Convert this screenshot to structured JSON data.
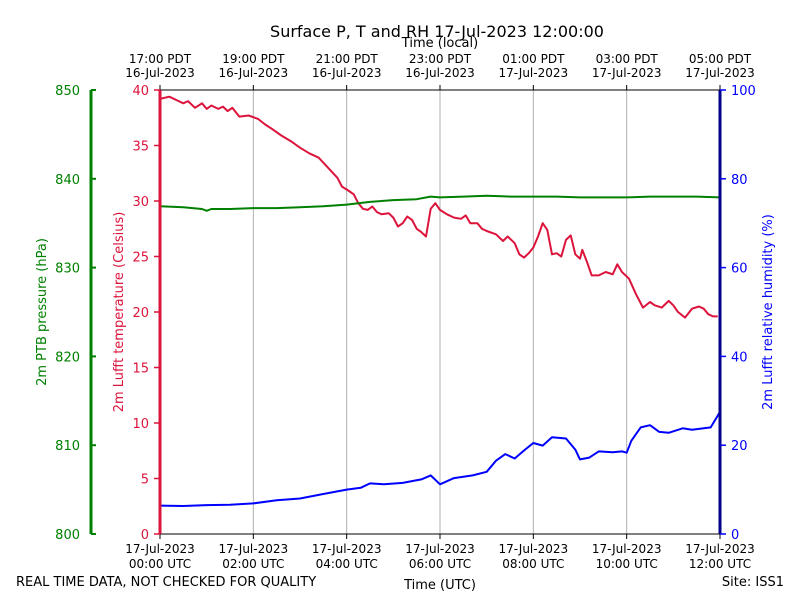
{
  "chart_data": {
    "type": "line",
    "title": "Surface P, T and RH 17-Jul-2023 12:00:00",
    "x_top_label": "Time (local)",
    "x_label": "Time (UTC)",
    "x_range_hours_utc": [
      0,
      12
    ],
    "x_bottom_ticks": [
      {
        "h": 0,
        "line1": "17-Jul-2023",
        "line2": "00:00 UTC"
      },
      {
        "h": 2,
        "line1": "17-Jul-2023",
        "line2": "02:00 UTC"
      },
      {
        "h": 4,
        "line1": "17-Jul-2023",
        "line2": "04:00 UTC"
      },
      {
        "h": 6,
        "line1": "17-Jul-2023",
        "line2": "06:00 UTC"
      },
      {
        "h": 8,
        "line1": "17-Jul-2023",
        "line2": "08:00 UTC"
      },
      {
        "h": 10,
        "line1": "17-Jul-2023",
        "line2": "10:00 UTC"
      },
      {
        "h": 12,
        "line1": "17-Jul-2023",
        "line2": "12:00 UTC"
      }
    ],
    "x_top_ticks": [
      {
        "h": 0,
        "line1": "17:00 PDT",
        "line2": "16-Jul-2023"
      },
      {
        "h": 2,
        "line1": "19:00 PDT",
        "line2": "16-Jul-2023"
      },
      {
        "h": 4,
        "line1": "21:00 PDT",
        "line2": "16-Jul-2023"
      },
      {
        "h": 6,
        "line1": "23:00 PDT",
        "line2": "16-Jul-2023"
      },
      {
        "h": 8,
        "line1": "01:00 PDT",
        "line2": "17-Jul-2023"
      },
      {
        "h": 10,
        "line1": "03:00 PDT",
        "line2": "17-Jul-2023"
      },
      {
        "h": 12,
        "line1": "05:00 PDT",
        "line2": "17-Jul-2023"
      }
    ],
    "vertical_grid_hours": [
      2,
      4,
      6,
      8,
      10
    ],
    "axes": {
      "pressure": {
        "label": "2m PTB pressure (hPa)",
        "range": [
          800,
          850
        ],
        "ticks": [
          800,
          810,
          820,
          830,
          840,
          850
        ],
        "color": "#008000"
      },
      "temperature": {
        "label": "2m Lufft temperature (Celsius)",
        "range": [
          0,
          40
        ],
        "ticks": [
          0,
          5,
          10,
          15,
          20,
          25,
          30,
          35,
          40
        ],
        "color": "#dc143c"
      },
      "humidity": {
        "label": "2m Lufft relative humidity (%)",
        "range": [
          0,
          100
        ],
        "ticks": [
          0,
          20,
          40,
          60,
          80,
          100
        ],
        "color": "#0000ff"
      }
    },
    "series": [
      {
        "name": "2m Lufft temperature (Celsius)",
        "axis": "temperature",
        "color": "#dc143c",
        "points": [
          [
            0,
            39.2
          ],
          [
            0.2,
            39.4
          ],
          [
            0.35,
            39.1
          ],
          [
            0.5,
            38.8
          ],
          [
            0.6,
            39.0
          ],
          [
            0.75,
            38.4
          ],
          [
            0.9,
            38.8
          ],
          [
            1.0,
            38.3
          ],
          [
            1.1,
            38.6
          ],
          [
            1.25,
            38.3
          ],
          [
            1.35,
            38.5
          ],
          [
            1.45,
            38.1
          ],
          [
            1.55,
            38.4
          ],
          [
            1.7,
            37.6
          ],
          [
            1.9,
            37.7
          ],
          [
            2.1,
            37.4
          ],
          [
            2.25,
            36.9
          ],
          [
            2.4,
            36.5
          ],
          [
            2.6,
            35.9
          ],
          [
            2.8,
            35.4
          ],
          [
            3.0,
            34.8
          ],
          [
            3.2,
            34.3
          ],
          [
            3.4,
            33.9
          ],
          [
            3.6,
            33.0
          ],
          [
            3.8,
            32.1
          ],
          [
            3.9,
            31.3
          ],
          [
            4.05,
            30.9
          ],
          [
            4.15,
            30.6
          ],
          [
            4.25,
            29.8
          ],
          [
            4.35,
            29.3
          ],
          [
            4.45,
            29.2
          ],
          [
            4.55,
            29.5
          ],
          [
            4.65,
            29.0
          ],
          [
            4.75,
            28.8
          ],
          [
            4.9,
            28.9
          ],
          [
            5.0,
            28.5
          ],
          [
            5.1,
            27.7
          ],
          [
            5.2,
            28.0
          ],
          [
            5.3,
            28.6
          ],
          [
            5.4,
            28.3
          ],
          [
            5.5,
            27.5
          ],
          [
            5.6,
            27.2
          ],
          [
            5.7,
            26.8
          ],
          [
            5.8,
            29.3
          ],
          [
            5.9,
            29.8
          ],
          [
            6.0,
            29.2
          ],
          [
            6.15,
            28.8
          ],
          [
            6.3,
            28.5
          ],
          [
            6.45,
            28.4
          ],
          [
            6.55,
            28.7
          ],
          [
            6.65,
            28.0
          ],
          [
            6.8,
            28.0
          ],
          [
            6.9,
            27.5
          ],
          [
            7.0,
            27.3
          ],
          [
            7.2,
            27.0
          ],
          [
            7.35,
            26.4
          ],
          [
            7.45,
            26.8
          ],
          [
            7.6,
            26.2
          ],
          [
            7.7,
            25.2
          ],
          [
            7.8,
            24.9
          ],
          [
            7.9,
            25.3
          ],
          [
            8.0,
            25.8
          ],
          [
            8.1,
            26.8
          ],
          [
            8.2,
            28.0
          ],
          [
            8.3,
            27.4
          ],
          [
            8.4,
            25.2
          ],
          [
            8.5,
            25.3
          ],
          [
            8.6,
            25.0
          ],
          [
            8.7,
            26.5
          ],
          [
            8.8,
            26.9
          ],
          [
            8.9,
            25.2
          ],
          [
            9.0,
            24.8
          ],
          [
            9.05,
            25.6
          ],
          [
            9.15,
            24.5
          ],
          [
            9.25,
            23.3
          ],
          [
            9.4,
            23.3
          ],
          [
            9.55,
            23.6
          ],
          [
            9.7,
            23.4
          ],
          [
            9.8,
            24.3
          ],
          [
            9.9,
            23.6
          ],
          [
            10.05,
            23.0
          ],
          [
            10.2,
            21.6
          ],
          [
            10.35,
            20.4
          ],
          [
            10.5,
            20.9
          ],
          [
            10.6,
            20.6
          ],
          [
            10.75,
            20.4
          ],
          [
            10.9,
            21.0
          ],
          [
            11.0,
            20.6
          ],
          [
            11.1,
            20.0
          ],
          [
            11.25,
            19.5
          ],
          [
            11.4,
            20.3
          ],
          [
            11.55,
            20.5
          ],
          [
            11.65,
            20.3
          ],
          [
            11.75,
            19.8
          ],
          [
            11.85,
            19.6
          ],
          [
            11.95,
            19.6
          ]
        ]
      },
      {
        "name": "2m PTB pressure (hPa)",
        "axis": "pressure",
        "color": "#008000",
        "points": [
          [
            0,
            836.9
          ],
          [
            0.5,
            836.8
          ],
          [
            0.9,
            836.6
          ],
          [
            1.0,
            836.4
          ],
          [
            1.1,
            836.6
          ],
          [
            1.5,
            836.6
          ],
          [
            2.0,
            836.7
          ],
          [
            2.5,
            836.7
          ],
          [
            3.0,
            836.8
          ],
          [
            3.5,
            836.9
          ],
          [
            4.0,
            837.1
          ],
          [
            4.5,
            837.4
          ],
          [
            5.0,
            837.6
          ],
          [
            5.5,
            837.7
          ],
          [
            5.8,
            838.0
          ],
          [
            6.0,
            837.9
          ],
          [
            6.5,
            838.0
          ],
          [
            7.0,
            838.1
          ],
          [
            7.5,
            838.0
          ],
          [
            8.0,
            838.0
          ],
          [
            8.5,
            838.0
          ],
          [
            9.0,
            837.9
          ],
          [
            9.5,
            837.9
          ],
          [
            10.0,
            837.9
          ],
          [
            10.5,
            838.0
          ],
          [
            11.0,
            838.0
          ],
          [
            11.5,
            838.0
          ],
          [
            12.0,
            837.9
          ]
        ]
      },
      {
        "name": "2m Lufft relative humidity (%)",
        "axis": "humidity",
        "color": "#0000ff",
        "points": [
          [
            0,
            6.4
          ],
          [
            0.5,
            6.3
          ],
          [
            1.0,
            6.5
          ],
          [
            1.5,
            6.6
          ],
          [
            2.0,
            6.9
          ],
          [
            2.5,
            7.6
          ],
          [
            3.0,
            8.0
          ],
          [
            3.5,
            9.0
          ],
          [
            4.0,
            10.0
          ],
          [
            4.3,
            10.4
          ],
          [
            4.5,
            11.4
          ],
          [
            4.8,
            11.2
          ],
          [
            5.2,
            11.5
          ],
          [
            5.6,
            12.3
          ],
          [
            5.8,
            13.2
          ],
          [
            6.0,
            11.2
          ],
          [
            6.3,
            12.6
          ],
          [
            6.7,
            13.2
          ],
          [
            7.0,
            14.0
          ],
          [
            7.2,
            16.5
          ],
          [
            7.4,
            18.0
          ],
          [
            7.6,
            17.0
          ],
          [
            7.8,
            18.8
          ],
          [
            8.0,
            20.5
          ],
          [
            8.2,
            19.9
          ],
          [
            8.4,
            21.8
          ],
          [
            8.7,
            21.5
          ],
          [
            8.9,
            19.0
          ],
          [
            9.0,
            16.8
          ],
          [
            9.2,
            17.2
          ],
          [
            9.4,
            18.6
          ],
          [
            9.7,
            18.4
          ],
          [
            9.9,
            18.6
          ],
          [
            10.0,
            18.3
          ],
          [
            10.1,
            21.0
          ],
          [
            10.3,
            24.0
          ],
          [
            10.5,
            24.5
          ],
          [
            10.7,
            23.0
          ],
          [
            10.9,
            22.8
          ],
          [
            11.2,
            23.8
          ],
          [
            11.4,
            23.5
          ],
          [
            11.8,
            24.0
          ],
          [
            12.0,
            27.5
          ]
        ]
      }
    ]
  },
  "footer": {
    "left": "REAL TIME DATA, NOT CHECKED FOR QUALITY",
    "right": "Site: ISS1"
  }
}
